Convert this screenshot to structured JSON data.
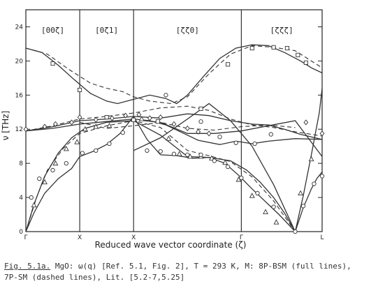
{
  "chart_data": {
    "type": "line",
    "ylabel": "ν [THz]",
    "xlabel": "Reduced wave vector coordinate (ζ)",
    "ylim": [
      0,
      26
    ],
    "y_ticks": [
      0,
      4,
      8,
      12,
      16,
      20,
      24
    ],
    "grid": false,
    "segments": [
      {
        "label": "[00ζ]",
        "start": "Γ",
        "end": "X"
      },
      {
        "label": "[0ζ1]",
        "start": "X",
        "end": "X"
      },
      {
        "label": "[ζζ0]",
        "start": "X",
        "end": "Γ"
      },
      {
        "label": "[ζζζ]",
        "start": "Γ",
        "end": "L"
      }
    ],
    "x_tick_labels": [
      "Γ",
      "X",
      "X",
      "Γ",
      "L"
    ],
    "series": [
      {
        "style": "solid",
        "points": [
          [
            0,
            21.5
          ],
          [
            0.3,
            21
          ],
          [
            0.6,
            19.5
          ],
          [
            0.9,
            17.8
          ],
          [
            1.2,
            16.2
          ],
          [
            1.5,
            15.3
          ],
          [
            1.7,
            15
          ],
          [
            2,
            15.5
          ],
          [
            2.3,
            16
          ],
          [
            2.6,
            15.6
          ],
          [
            2.8,
            15
          ],
          [
            3,
            16
          ],
          [
            3.3,
            18.2
          ],
          [
            3.6,
            20.3
          ],
          [
            3.9,
            21.5
          ],
          [
            4.2,
            21.9
          ],
          [
            4.5,
            21.8
          ],
          [
            4.8,
            21
          ],
          [
            5.1,
            20
          ],
          [
            5.3,
            19.2
          ],
          [
            5.5,
            18.6
          ]
        ]
      },
      {
        "style": "solid",
        "points": [
          [
            0,
            11.8
          ],
          [
            0.5,
            12.3
          ],
          [
            1,
            13
          ],
          [
            1.5,
            13.2
          ],
          [
            2,
            13.5
          ],
          [
            2.5,
            13.3
          ],
          [
            3,
            13.8
          ],
          [
            3.4,
            13.6
          ],
          [
            3.8,
            13
          ],
          [
            4.2,
            12.6
          ],
          [
            4.5,
            12.5
          ],
          [
            4.8,
            12
          ],
          [
            5.1,
            11.4
          ],
          [
            5.5,
            10.8
          ]
        ]
      },
      {
        "style": "solid",
        "points": [
          [
            0,
            11.8
          ],
          [
            0.5,
            12.1
          ],
          [
            1,
            12.6
          ],
          [
            1.5,
            12.9
          ],
          [
            2,
            13.2
          ],
          [
            2.3,
            13
          ],
          [
            2.6,
            12.5
          ],
          [
            2.9,
            11.6
          ],
          [
            3.2,
            10.7
          ],
          [
            3.6,
            10.2
          ],
          [
            3.9,
            10.6
          ],
          [
            4.2,
            10.3
          ],
          [
            4.5,
            10.6
          ],
          [
            5,
            10.9
          ],
          [
            5.5,
            10.8
          ]
        ]
      },
      {
        "style": "solid",
        "points": [
          [
            0,
            0
          ],
          [
            0.15,
            3.2
          ],
          [
            0.35,
            6.5
          ],
          [
            0.6,
            9.2
          ],
          [
            0.85,
            11
          ],
          [
            1.1,
            12.1
          ],
          [
            1.5,
            12.8
          ],
          [
            2,
            13
          ],
          [
            2.5,
            11.3
          ],
          [
            3,
            8.8
          ],
          [
            3.4,
            8.7
          ],
          [
            3.8,
            8.3
          ],
          [
            4.1,
            7.2
          ],
          [
            4.35,
            5.8
          ],
          [
            4.6,
            4
          ],
          [
            4.8,
            2.2
          ],
          [
            5,
            0
          ],
          [
            5.15,
            4.2
          ],
          [
            5.3,
            9
          ],
          [
            5.45,
            14
          ],
          [
            5.5,
            16.8
          ]
        ]
      },
      {
        "style": "solid",
        "points": [
          [
            0,
            0
          ],
          [
            0.15,
            2.2
          ],
          [
            0.35,
            4.5
          ],
          [
            0.6,
            6.2
          ],
          [
            0.85,
            7.4
          ],
          [
            1,
            8.8
          ],
          [
            1.25,
            9.4
          ],
          [
            1.5,
            10.2
          ],
          [
            1.75,
            11.5
          ],
          [
            2,
            13.5
          ],
          [
            2.25,
            10.8
          ],
          [
            2.5,
            9
          ],
          [
            2.8,
            8.9
          ],
          [
            3.1,
            8.6
          ],
          [
            3.4,
            8.7
          ],
          [
            3.7,
            8
          ],
          [
            3.95,
            6.6
          ],
          [
            4.2,
            5
          ],
          [
            4.45,
            3.5
          ],
          [
            4.7,
            2
          ],
          [
            5,
            0
          ],
          [
            5.15,
            2.8
          ],
          [
            5.3,
            5
          ],
          [
            5.4,
            6.2
          ],
          [
            5.5,
            7
          ]
        ]
      },
      {
        "style": "solid",
        "points": [
          [
            2,
            9.5
          ],
          [
            2.5,
            11
          ],
          [
            3,
            13.2
          ],
          [
            3.4,
            15
          ],
          [
            3.8,
            13
          ],
          [
            4.2,
            10
          ],
          [
            4.6,
            5.5
          ],
          [
            5,
            0
          ]
        ]
      },
      {
        "style": "solid",
        "points": [
          [
            2.2,
            13
          ],
          [
            2.5,
            12.8
          ],
          [
            3,
            11.5
          ],
          [
            3.5,
            11.5
          ],
          [
            4,
            11.8
          ],
          [
            4.5,
            12.4
          ],
          [
            5,
            13
          ],
          [
            5.5,
            8.8
          ]
        ]
      },
      {
        "style": "dashed",
        "points": [
          [
            0,
            21.5
          ],
          [
            0.4,
            20.8
          ],
          [
            0.8,
            19
          ],
          [
            1.2,
            17.4
          ],
          [
            1.5,
            16.8
          ],
          [
            1.8,
            16.4
          ],
          [
            2,
            15.8
          ],
          [
            2.3,
            15.3
          ],
          [
            2.7,
            15
          ],
          [
            3,
            15.8
          ],
          [
            3.4,
            18.5
          ],
          [
            3.8,
            20.8
          ],
          [
            4.2,
            21.8
          ],
          [
            4.6,
            21.6
          ],
          [
            5,
            21.2
          ],
          [
            5.5,
            19.2
          ]
        ]
      },
      {
        "style": "dashed",
        "points": [
          [
            0,
            11.8
          ],
          [
            0.5,
            12.4
          ],
          [
            1,
            13.2
          ],
          [
            1.5,
            13.5
          ],
          [
            2,
            13.9
          ],
          [
            2.5,
            14.5
          ],
          [
            3,
            14.7
          ],
          [
            3.4,
            14.2
          ],
          [
            3.8,
            13.2
          ],
          [
            4.2,
            12.5
          ],
          [
            4.6,
            12.2
          ],
          [
            5,
            11.7
          ],
          [
            5.5,
            11.2
          ]
        ]
      },
      {
        "style": "dashed",
        "points": [
          [
            0,
            0
          ],
          [
            0.2,
            4
          ],
          [
            0.4,
            7.2
          ],
          [
            0.7,
            9.8
          ],
          [
            1,
            11.5
          ],
          [
            1.5,
            12.4
          ],
          [
            2,
            13
          ],
          [
            2.5,
            12.2
          ],
          [
            3,
            9.5
          ],
          [
            3.4,
            8.9
          ],
          [
            3.8,
            8.2
          ],
          [
            4.2,
            6.4
          ],
          [
            4.6,
            3.6
          ],
          [
            5,
            0
          ]
        ]
      },
      {
        "style": "dashed",
        "points": [
          [
            1,
            12.8
          ],
          [
            1.5,
            12.1
          ],
          [
            2,
            12.4
          ],
          [
            2.5,
            12.8
          ],
          [
            3,
            12.1
          ],
          [
            3.5,
            11.9
          ],
          [
            4,
            12.3
          ],
          [
            4.5,
            12.5
          ],
          [
            5,
            12.2
          ]
        ]
      }
    ],
    "markers": [
      {
        "shape": "square",
        "points": [
          [
            0.5,
            19.7
          ],
          [
            1,
            16.6
          ],
          [
            1.5,
            13.4
          ],
          [
            2,
            13.1
          ],
          [
            2.45,
            12.9
          ],
          [
            3.25,
            14.4
          ],
          [
            3.75,
            19.6
          ],
          [
            4.2,
            21.5
          ],
          [
            4.6,
            21.6
          ],
          [
            4.85,
            21.5
          ],
          [
            5.05,
            20.7
          ],
          [
            5.2,
            19.8
          ]
        ]
      },
      {
        "shape": "triangle",
        "points": [
          [
            0.15,
            3.1
          ],
          [
            0.35,
            5.8
          ],
          [
            0.55,
            8
          ],
          [
            0.75,
            9.7
          ],
          [
            0.95,
            10.5
          ],
          [
            1.1,
            12
          ],
          [
            1.3,
            12.3
          ],
          [
            1.55,
            12.4
          ],
          [
            2.15,
            13.2
          ],
          [
            2.65,
            10.9
          ],
          [
            2.85,
            9.1
          ],
          [
            3.05,
            8.8
          ],
          [
            3.25,
            8.8
          ],
          [
            3.45,
            8.6
          ],
          [
            3.7,
            8.1
          ],
          [
            3.95,
            6.1
          ],
          [
            4.2,
            4.2
          ],
          [
            4.45,
            2.3
          ],
          [
            4.65,
            1.1
          ],
          [
            5.1,
            4.5
          ],
          [
            5.3,
            8.5
          ]
        ]
      },
      {
        "shape": "circle",
        "points": [
          [
            0.1,
            4
          ],
          [
            0.25,
            6.2
          ],
          [
            0.5,
            7.2
          ],
          [
            0.75,
            8
          ],
          [
            1.05,
            9.2
          ],
          [
            1.3,
            9.5
          ],
          [
            1.55,
            10.3
          ],
          [
            1.8,
            11.6
          ],
          [
            2.25,
            9.5
          ],
          [
            2.5,
            9.4
          ],
          [
            2.75,
            9.1
          ],
          [
            3,
            9
          ],
          [
            3.25,
            9
          ],
          [
            3.5,
            8.3
          ],
          [
            3.75,
            7.6
          ],
          [
            4,
            6.3
          ],
          [
            4.3,
            4.5
          ],
          [
            4.6,
            2.9
          ],
          [
            5,
            0
          ],
          [
            5.15,
            3
          ],
          [
            5.35,
            5.6
          ],
          [
            5.5,
            6.5
          ],
          [
            2.6,
            16
          ],
          [
            3.25,
            12.9
          ],
          [
            3.6,
            11.1
          ],
          [
            3.9,
            10.4
          ],
          [
            4.25,
            10.3
          ],
          [
            4.55,
            11.4
          ]
        ]
      },
      {
        "shape": "diamond",
        "points": [
          [
            0,
            12
          ],
          [
            0.35,
            12.3
          ],
          [
            0.55,
            12.6
          ],
          [
            0.85,
            12.8
          ],
          [
            1,
            13.4
          ],
          [
            1.3,
            13.1
          ],
          [
            1.6,
            13.3
          ],
          [
            1.85,
            13.6
          ],
          [
            2.1,
            13.7
          ],
          [
            2.3,
            13.3
          ],
          [
            2.5,
            13.4
          ],
          [
            2.75,
            12.6
          ],
          [
            3,
            12.1
          ],
          [
            3.2,
            11.7
          ],
          [
            3.4,
            11.5
          ],
          [
            5.2,
            12.8
          ],
          [
            5.5,
            11.5
          ]
        ]
      }
    ]
  },
  "caption": {
    "figref": "Fig. 5.1a.",
    "line1": " MgO: ω(q) [Ref. 5.1, Fig. 2], T = 293 K, M: 8P-BSM (full lines),",
    "line2": "7P-SM (dashed lines), Lit. [5.2-7,5.25]"
  }
}
